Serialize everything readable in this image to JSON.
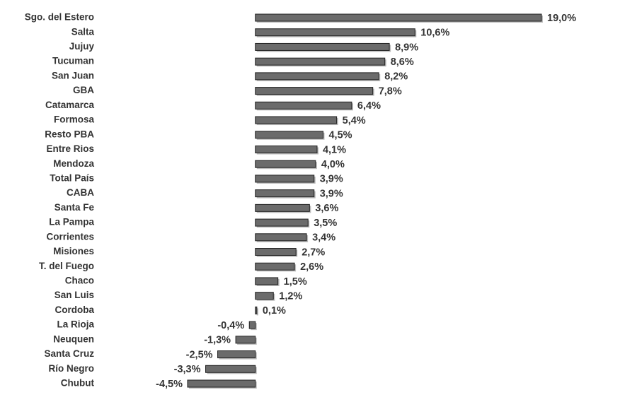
{
  "chart_data": {
    "type": "bar",
    "orientation": "horizontal",
    "color": "#6b6b6b",
    "categories": [
      "Sgo. del Estero",
      "Salta",
      "Jujuy",
      "Tucuman",
      "San Juan",
      "GBA",
      "Catamarca",
      "Formosa",
      "Resto PBA",
      "Entre Rios",
      "Mendoza",
      "Total País",
      "CABA",
      "Santa Fe",
      "La Pampa",
      "Corrientes",
      "Misiones",
      "T. del Fuego",
      "Chaco",
      "San Luis",
      "Cordoba",
      "La Rioja",
      "Neuquen",
      "Santa Cruz",
      "Río Negro",
      "Chubut"
    ],
    "values": [
      19.0,
      10.6,
      8.9,
      8.6,
      8.2,
      7.8,
      6.4,
      5.4,
      4.5,
      4.1,
      4.0,
      3.9,
      3.9,
      3.6,
      3.5,
      3.4,
      2.7,
      2.6,
      1.5,
      1.2,
      0.1,
      -0.4,
      -1.3,
      -2.5,
      -3.3,
      -4.5
    ],
    "value_labels": [
      "19,0%",
      "10,6%",
      "8,9%",
      "8,6%",
      "8,2%",
      "7,8%",
      "6,4%",
      "5,4%",
      "4,5%",
      "4,1%",
      "4,0%",
      "3,9%",
      "3,9%",
      "3,6%",
      "3,5%",
      "3,4%",
      "2,7%",
      "2,6%",
      "1,5%",
      "1,2%",
      "0,1%",
      "-0,4%",
      "-1,3%",
      "-2,5%",
      "-3,3%",
      "-4,5%"
    ]
  }
}
